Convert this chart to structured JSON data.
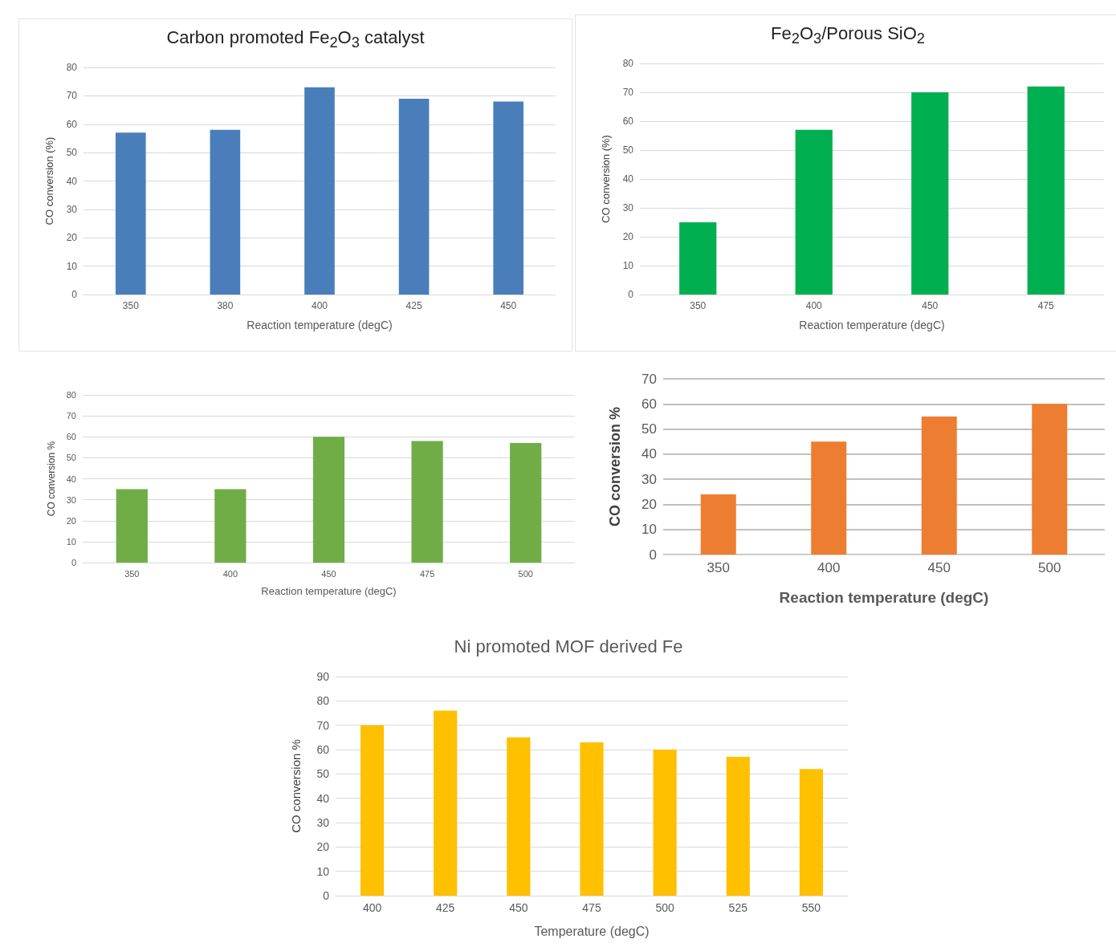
{
  "chart_data": [
    {
      "type": "bar",
      "title": "Carbon promoted Fe$_{2}$O$_{3}$ catalyst",
      "xlabel": "Reaction temperature (degC)",
      "ylabel": "CO conversion (%)",
      "categories": [
        "350",
        "380",
        "400",
        "425",
        "450"
      ],
      "values": [
        57,
        58,
        73,
        69,
        68
      ],
      "color": "#4a7ebb",
      "ylim": [
        0,
        80
      ],
      "yticks": [
        0,
        10,
        20,
        30,
        40,
        50,
        60,
        70,
        80
      ],
      "grid": "y"
    },
    {
      "type": "bar",
      "title": "Fe$_{2}$O$_{3}$/Porous SiO$_{2}$",
      "xlabel": "Reaction temperature (degC)",
      "ylabel": "CO conversion (%)",
      "categories": [
        "350",
        "400",
        "450",
        "475"
      ],
      "values": [
        25,
        57,
        70,
        72
      ],
      "color": "#00b050",
      "ylim": [
        0,
        80
      ],
      "yticks": [
        0,
        10,
        20,
        30,
        40,
        50,
        60,
        70,
        80
      ],
      "grid": "y"
    },
    {
      "type": "bar",
      "xlabel": "Reaction temperature (degC)",
      "ylabel": "CO conversion %",
      "categories": [
        "350",
        "400",
        "450",
        "475",
        "500"
      ],
      "values": [
        35,
        35,
        60,
        58,
        57
      ],
      "color": "#70ad47",
      "ylim": [
        0,
        80
      ],
      "yticks": [
        0,
        10,
        20,
        30,
        40,
        50,
        60,
        70,
        80
      ],
      "grid": "y"
    },
    {
      "type": "bar",
      "xlabel": "Reaction temperature (degC)",
      "ylabel": "CO conversion %",
      "categories": [
        "350",
        "400",
        "450",
        "500"
      ],
      "values": [
        24,
        45,
        55,
        60
      ],
      "color": "#ed7d31",
      "ylim": [
        0,
        70
      ],
      "yticks": [
        0,
        10,
        20,
        30,
        40,
        50,
        60,
        70
      ],
      "grid": "y"
    },
    {
      "type": "bar",
      "title": "Ni promoted MOF derived Fe",
      "xlabel": "Temperature (degC)",
      "ylabel": "CO conversion %",
      "categories": [
        "400",
        "425",
        "450",
        "475",
        "500",
        "525",
        "550"
      ],
      "values": [
        70,
        76,
        65,
        63,
        60,
        57,
        52
      ],
      "color": "#ffc000",
      "ylim": [
        0,
        90
      ],
      "yticks": [
        0,
        10,
        20,
        30,
        40,
        50,
        60,
        70,
        80,
        90
      ],
      "grid": "y"
    }
  ]
}
